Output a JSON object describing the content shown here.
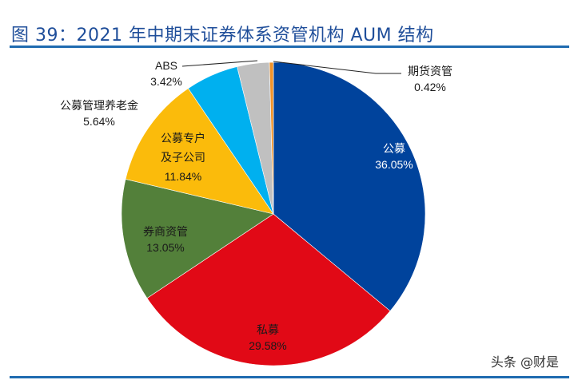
{
  "header": {
    "title": "图 39：2021 年中期末证券体系资管机构 AUM 结构"
  },
  "watermark": "头条 @财是",
  "chart_data": {
    "type": "pie",
    "title": "图 39：2021 年中期末证券体系资管机构 AUM 结构",
    "start_angle_deg": 0,
    "direction": "clockwise",
    "slices": [
      {
        "label": "公募",
        "value": 36.05,
        "display": "36.05%",
        "color": "#00439c"
      },
      {
        "label": "私募",
        "value": 29.58,
        "display": "29.58%",
        "color": "#e10916"
      },
      {
        "label": "券商资管",
        "value": 13.05,
        "display": "13.05%",
        "color": "#53803a"
      },
      {
        "label": "公募专户及子公司",
        "value": 11.84,
        "display": "11.84%",
        "color": "#fbbb0b"
      },
      {
        "label": "公募管理养老金",
        "value": 5.64,
        "display": "5.64%",
        "color": "#00b0ef"
      },
      {
        "label": "ABS",
        "value": 3.42,
        "display": "3.42%",
        "color": "#c0c0c0"
      },
      {
        "label": "期货资管",
        "value": 0.42,
        "display": "0.42%",
        "color": "#f0932a"
      }
    ],
    "legend": "none",
    "label_units": "%"
  },
  "labels": {
    "gongmu": {
      "name": "公募",
      "pct": "36.05%"
    },
    "simu": {
      "name": "私募",
      "pct": "29.58%"
    },
    "quanshang": {
      "name": "券商资管",
      "pct": "13.05%"
    },
    "zhuanhu": {
      "line1": "公募专户",
      "line2": "及子公司",
      "pct": "11.84%"
    },
    "yanglao": {
      "name": "公募管理养老金",
      "pct": "5.64%"
    },
    "abs": {
      "name": "ABS",
      "pct": "3.42%"
    },
    "qihuo": {
      "name": "期货资管",
      "pct": "0.42%"
    }
  }
}
